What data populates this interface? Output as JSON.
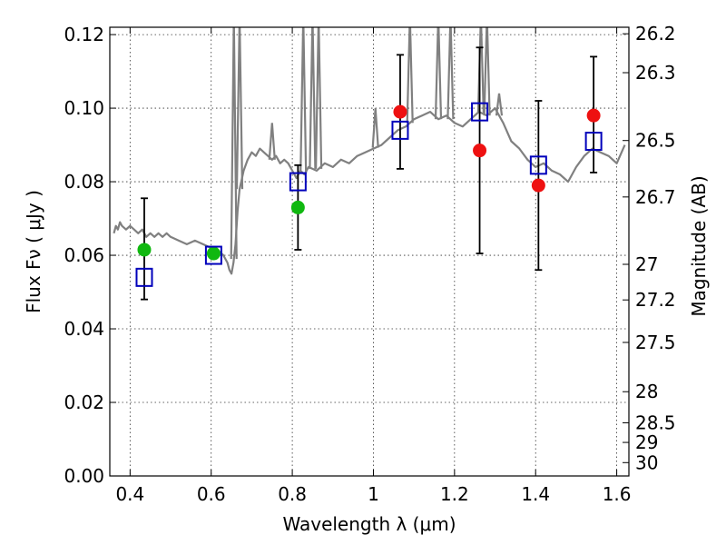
{
  "chart_data": {
    "type": "scatter",
    "xlabel": "Wavelength  λ (μm)",
    "ylabel": "Flux  Fν  ( μJy )",
    "y2label": "Magnitude (AB)",
    "xlim": [
      0.35,
      1.63
    ],
    "ylim": [
      0.0,
      0.122
    ],
    "x_ticks": [
      0.4,
      0.6,
      0.8,
      1.0,
      1.2,
      1.4,
      1.6
    ],
    "x_tick_labels": [
      "0.4",
      "0.6",
      "0.8",
      "1",
      "1.2",
      "1.4",
      "1.6"
    ],
    "y_ticks": [
      0.0,
      0.02,
      0.04,
      0.06,
      0.08,
      0.1,
      0.12
    ],
    "y_tick_labels": [
      "0.00",
      "0.02",
      "0.04",
      "0.06",
      "0.08",
      "0.10",
      "0.12"
    ],
    "mag_ticks": [
      26.2,
      26.3,
      26.5,
      26.7,
      27,
      27.2,
      27.5,
      28,
      28.5,
      29,
      30
    ],
    "mag_tick_labels": [
      "26.2",
      "26.3",
      "26.5",
      "26.7",
      "27",
      "27.2",
      "27.5",
      "28",
      "28.5",
      "29",
      "30"
    ],
    "grid": true,
    "colors": {
      "model": "#808080",
      "observed_optical": "#10b810",
      "observed_nir": "#ee1111",
      "model_photometry": "#0000bb",
      "errorbar": "#000000"
    },
    "model_sed": {
      "x": [
        0.36,
        0.365,
        0.37,
        0.375,
        0.38,
        0.39,
        0.4,
        0.41,
        0.42,
        0.43,
        0.44,
        0.45,
        0.46,
        0.47,
        0.48,
        0.49,
        0.5,
        0.52,
        0.54,
        0.56,
        0.58,
        0.6,
        0.61,
        0.62,
        0.63,
        0.64,
        0.645,
        0.65,
        0.655,
        0.66,
        0.665,
        0.67,
        0.68,
        0.69,
        0.7,
        0.71,
        0.72,
        0.73,
        0.74,
        0.75,
        0.76,
        0.77,
        0.78,
        0.79,
        0.8,
        0.81,
        0.82,
        0.83,
        0.84,
        0.86,
        0.88,
        0.9,
        0.92,
        0.94,
        0.96,
        0.98,
        1.0,
        1.02,
        1.04,
        1.06,
        1.08,
        1.1,
        1.12,
        1.14,
        1.16,
        1.18,
        1.2,
        1.22,
        1.24,
        1.26,
        1.28,
        1.3,
        1.32,
        1.34,
        1.36,
        1.38,
        1.4,
        1.42,
        1.44,
        1.46,
        1.48,
        1.5,
        1.52,
        1.54,
        1.56,
        1.58,
        1.6,
        1.62
      ],
      "y": [
        0.066,
        0.068,
        0.067,
        0.069,
        0.068,
        0.067,
        0.068,
        0.067,
        0.066,
        0.067,
        0.065,
        0.066,
        0.065,
        0.066,
        0.065,
        0.066,
        0.065,
        0.064,
        0.063,
        0.064,
        0.063,
        0.062,
        0.061,
        0.061,
        0.06,
        0.058,
        0.056,
        0.055,
        0.058,
        0.063,
        0.072,
        0.078,
        0.083,
        0.086,
        0.088,
        0.087,
        0.089,
        0.088,
        0.087,
        0.086,
        0.087,
        0.085,
        0.086,
        0.085,
        0.083,
        0.081,
        0.083,
        0.082,
        0.084,
        0.083,
        0.085,
        0.084,
        0.086,
        0.085,
        0.087,
        0.088,
        0.089,
        0.09,
        0.092,
        0.094,
        0.095,
        0.097,
        0.098,
        0.099,
        0.097,
        0.098,
        0.096,
        0.095,
        0.097,
        0.099,
        0.098,
        0.1,
        0.096,
        0.091,
        0.089,
        0.086,
        0.084,
        0.085,
        0.083,
        0.082,
        0.08,
        0.084,
        0.087,
        0.089,
        0.088,
        0.087,
        0.085,
        0.09
      ]
    },
    "model_lines": [
      {
        "x": 0.656,
        "y": 0.125
      },
      {
        "x": 0.67,
        "y": 0.125
      },
      {
        "x": 0.75,
        "y": 0.096
      },
      {
        "x": 0.827,
        "y": 0.125
      },
      {
        "x": 0.85,
        "y": 0.125
      },
      {
        "x": 0.865,
        "y": 0.125
      },
      {
        "x": 1.005,
        "y": 0.1
      },
      {
        "x": 1.09,
        "y": 0.125
      },
      {
        "x": 1.16,
        "y": 0.125
      },
      {
        "x": 1.19,
        "y": 0.125
      },
      {
        "x": 1.265,
        "y": 0.125
      },
      {
        "x": 1.28,
        "y": 0.125
      },
      {
        "x": 1.31,
        "y": 0.104
      }
    ],
    "observed_optical": [
      {
        "x": 0.435,
        "y": 0.0615
      },
      {
        "x": 0.606,
        "y": 0.0605
      },
      {
        "x": 0.814,
        "y": 0.073
      }
    ],
    "observed_nir": [
      {
        "x": 1.066,
        "y": 0.099
      },
      {
        "x": 1.262,
        "y": 0.0885
      },
      {
        "x": 1.407,
        "y": 0.079
      },
      {
        "x": 1.543,
        "y": 0.098
      }
    ],
    "model_photometry": [
      {
        "x": 0.435,
        "y": 0.054
      },
      {
        "x": 0.606,
        "y": 0.06
      },
      {
        "x": 0.814,
        "y": 0.08
      },
      {
        "x": 1.066,
        "y": 0.094
      },
      {
        "x": 1.262,
        "y": 0.099
      },
      {
        "x": 1.407,
        "y": 0.0845
      },
      {
        "x": 1.543,
        "y": 0.091
      }
    ],
    "error_bars": [
      {
        "x": 0.435,
        "low": 0.048,
        "high": 0.0755
      },
      {
        "x": 0.814,
        "low": 0.0615,
        "high": 0.0845
      },
      {
        "x": 1.066,
        "low": 0.0835,
        "high": 0.1145
      },
      {
        "x": 1.262,
        "low": 0.0605,
        "high": 0.1165
      },
      {
        "x": 1.407,
        "low": 0.056,
        "high": 0.102
      },
      {
        "x": 1.543,
        "low": 0.0825,
        "high": 0.114
      }
    ]
  }
}
